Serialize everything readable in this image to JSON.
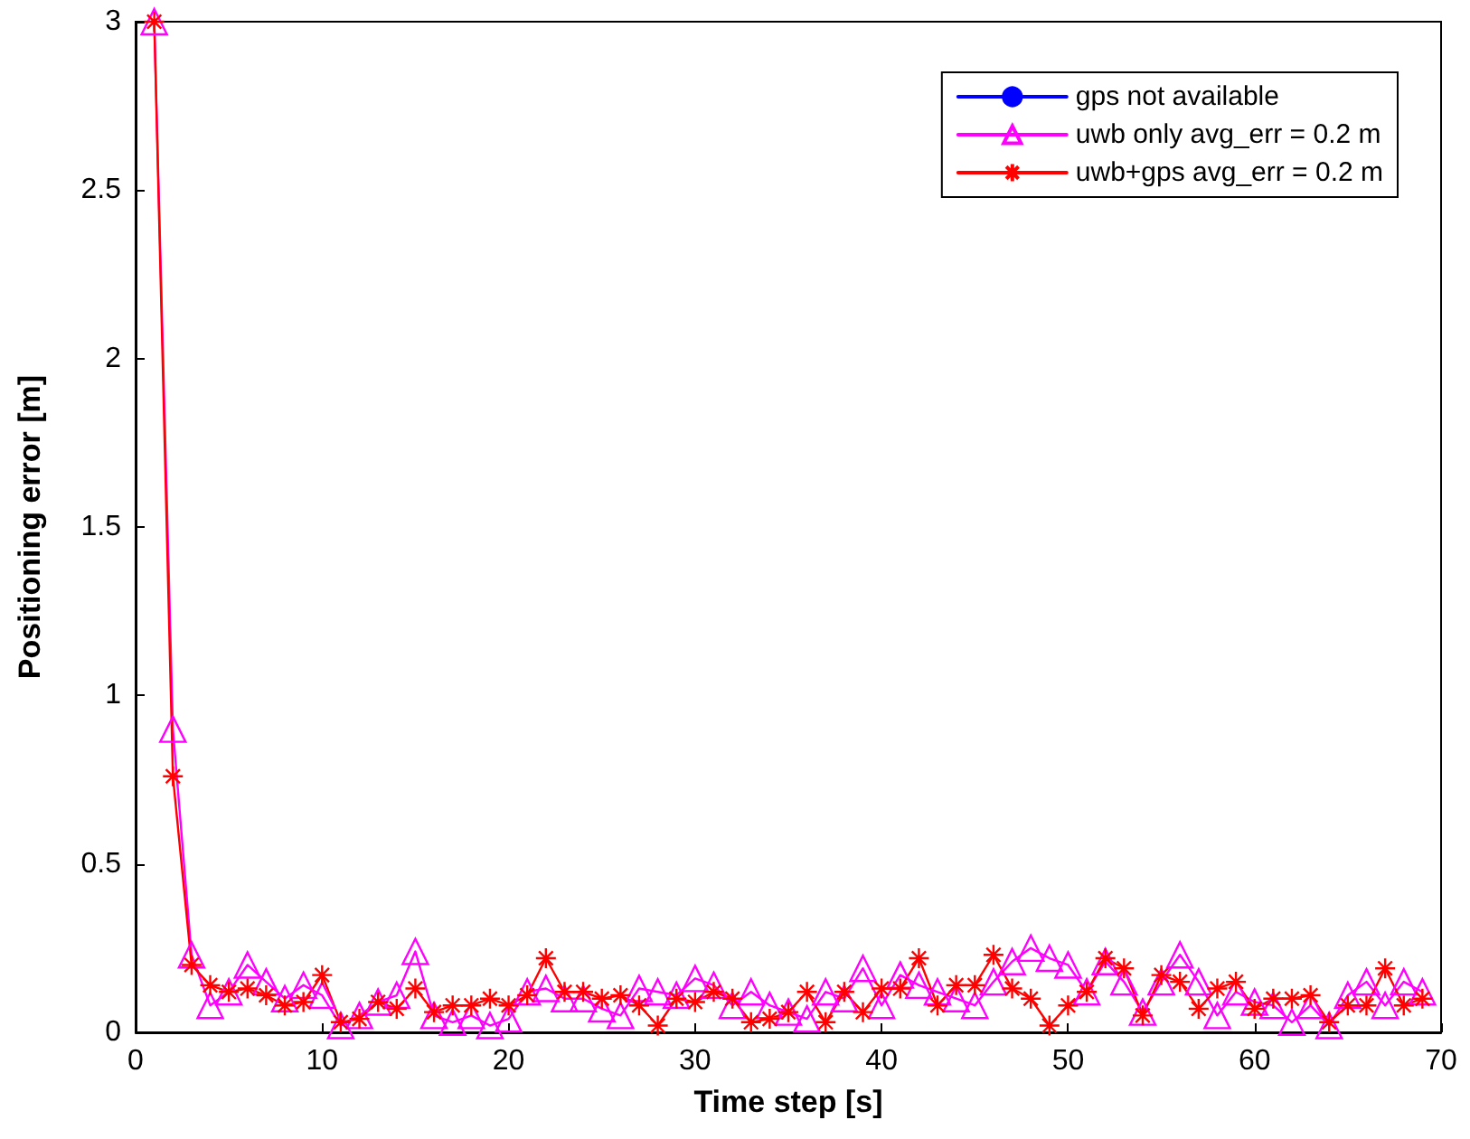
{
  "chart_data": {
    "type": "line",
    "xlabel": "Time step [s]",
    "ylabel": "Positioning error [m]",
    "x": [
      1,
      2,
      3,
      4,
      5,
      6,
      7,
      8,
      9,
      10,
      11,
      12,
      13,
      14,
      15,
      16,
      17,
      18,
      19,
      20,
      21,
      22,
      23,
      24,
      25,
      26,
      27,
      28,
      29,
      30,
      31,
      32,
      33,
      34,
      35,
      36,
      37,
      38,
      39,
      40,
      41,
      42,
      43,
      44,
      45,
      46,
      47,
      48,
      49,
      50,
      51,
      52,
      53,
      54,
      55,
      56,
      57,
      58,
      59,
      60,
      61,
      62,
      63,
      64,
      65,
      66,
      67,
      68,
      69
    ],
    "xlim": [
      0,
      70
    ],
    "xticks": [
      0,
      10,
      20,
      30,
      40,
      50,
      60,
      70
    ],
    "ylim": [
      0,
      3
    ],
    "yticks": [
      0,
      0.5,
      1,
      1.5,
      2,
      2.5,
      3
    ],
    "grid": false,
    "legend": "top right",
    "line_style": "solid",
    "series": [
      {
        "name": "gps not available",
        "color": "#0000ff",
        "marker": "circle",
        "values": [
          null,
          null,
          null,
          null,
          null,
          null,
          null,
          null,
          null,
          null,
          null,
          null,
          null,
          null,
          null,
          null,
          null,
          null,
          null,
          null,
          null,
          null,
          null,
          null,
          null,
          null,
          null,
          null,
          null,
          null,
          null,
          null,
          null,
          null,
          null,
          null,
          null,
          null,
          null,
          null,
          null,
          null,
          null,
          null,
          null,
          null,
          null,
          null,
          null,
          null,
          null,
          null,
          null,
          null,
          null,
          null,
          null,
          null,
          null,
          null,
          null,
          null,
          null,
          null,
          null,
          null,
          null,
          null,
          null
        ]
      },
      {
        "name": "uwb only avg_err = 0.2 m",
        "color": "#ff00ff",
        "marker": "triangle",
        "values": [
          3,
          0.9,
          0.23,
          0.08,
          0.12,
          0.2,
          0.15,
          0.1,
          0.14,
          0.11,
          0.02,
          0.05,
          0.09,
          0.11,
          0.24,
          0.05,
          0.03,
          0.05,
          0.02,
          0.04,
          0.12,
          0.13,
          0.1,
          0.1,
          0.07,
          0.05,
          0.13,
          0.12,
          0.11,
          0.16,
          0.14,
          0.08,
          0.12,
          0.08,
          0.06,
          0.04,
          0.12,
          0.1,
          0.19,
          0.08,
          0.17,
          0.14,
          0.12,
          0.1,
          0.08,
          0.15,
          0.21,
          0.25,
          0.22,
          0.2,
          0.12,
          0.21,
          0.15,
          0.06,
          0.15,
          0.23,
          0.15,
          0.05,
          0.12,
          0.09,
          0.08,
          0.03,
          0.08,
          0.02,
          0.11,
          0.15,
          0.08,
          0.15,
          0.12
        ]
      },
      {
        "name": "uwb+gps avg_err = 0.2 m",
        "color": "#ff0000",
        "marker": "cross",
        "values": [
          3,
          0.76,
          0.2,
          0.14,
          0.12,
          0.13,
          0.11,
          0.08,
          0.09,
          0.17,
          0.03,
          0.04,
          0.09,
          0.07,
          0.13,
          0.06,
          0.08,
          0.08,
          0.1,
          0.08,
          0.11,
          0.22,
          0.12,
          0.12,
          0.1,
          0.11,
          0.08,
          0.02,
          0.1,
          0.09,
          0.12,
          0.1,
          0.03,
          0.04,
          0.06,
          0.12,
          0.03,
          0.12,
          0.06,
          0.13,
          0.13,
          0.22,
          0.08,
          0.14,
          0.14,
          0.23,
          0.13,
          0.1,
          0.02,
          0.08,
          0.12,
          0.22,
          0.19,
          0.05,
          0.17,
          0.15,
          0.07,
          0.13,
          0.15,
          0.07,
          0.1,
          0.1,
          0.11,
          0.03,
          0.08,
          0.08,
          0.19,
          0.08,
          0.1
        ]
      }
    ]
  }
}
